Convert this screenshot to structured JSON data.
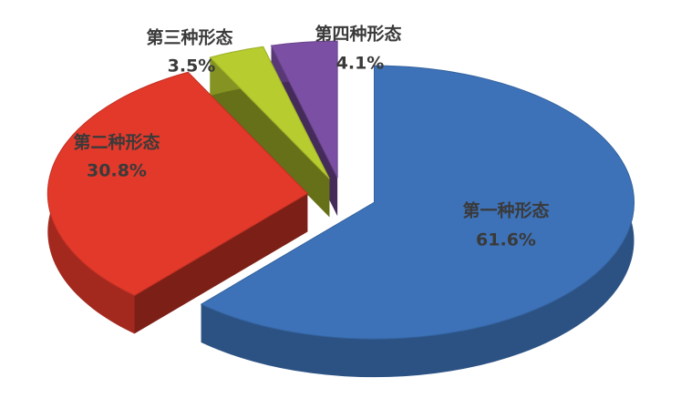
{
  "chart_data": {
    "type": "pie",
    "categories": [
      "第一种形态",
      "第二种形态",
      "第三种形态",
      "第四种形态"
    ],
    "values": [
      61.6,
      30.8,
      3.5,
      4.1
    ],
    "value_labels": [
      "61.6%",
      "30.8%",
      "3.5%",
      "4.1%"
    ],
    "colors": [
      "#3d72b8",
      "#e2392a",
      "#b7cc2e",
      "#7b4fa3"
    ]
  }
}
